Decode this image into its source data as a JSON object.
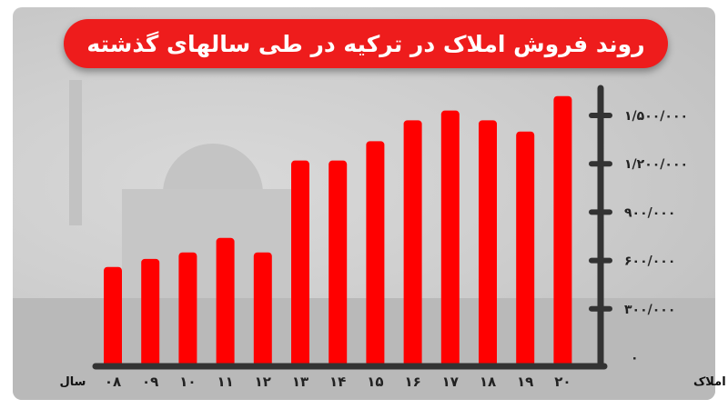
{
  "chart_data": {
    "type": "bar",
    "title": "روند فروش املاک در ترکیه در طی سالهای گذشته",
    "xlabel": "سال",
    "ylabel": "تعداد املاک",
    "categories": [
      "۰۸",
      "۰۹",
      "۱۰",
      "۱۱",
      "۱۲",
      "۱۳",
      "۱۴",
      "۱۵",
      "۱۶",
      "۱۷",
      "۱۸",
      "۱۹",
      "۲۰"
    ],
    "values": [
      560000,
      610000,
      650000,
      740000,
      650000,
      1220000,
      1220000,
      1340000,
      1470000,
      1530000,
      1470000,
      1400000,
      1620000
    ],
    "yticks": [
      0,
      300000,
      600000,
      900000,
      1200000,
      1500000
    ],
    "ytick_labels": [
      "۰",
      "۳۰۰/۰۰۰",
      "۶۰۰/۰۰۰",
      "۹۰۰/۰۰۰",
      "۱/۲۰۰/۰۰۰",
      "۱/۵۰۰/۰۰۰"
    ],
    "ylim": [
      0,
      1700000
    ],
    "y_axis_side": "right",
    "grid": false,
    "bar_color": "#ff0000",
    "title_bg_color": "#ee1c1c"
  }
}
